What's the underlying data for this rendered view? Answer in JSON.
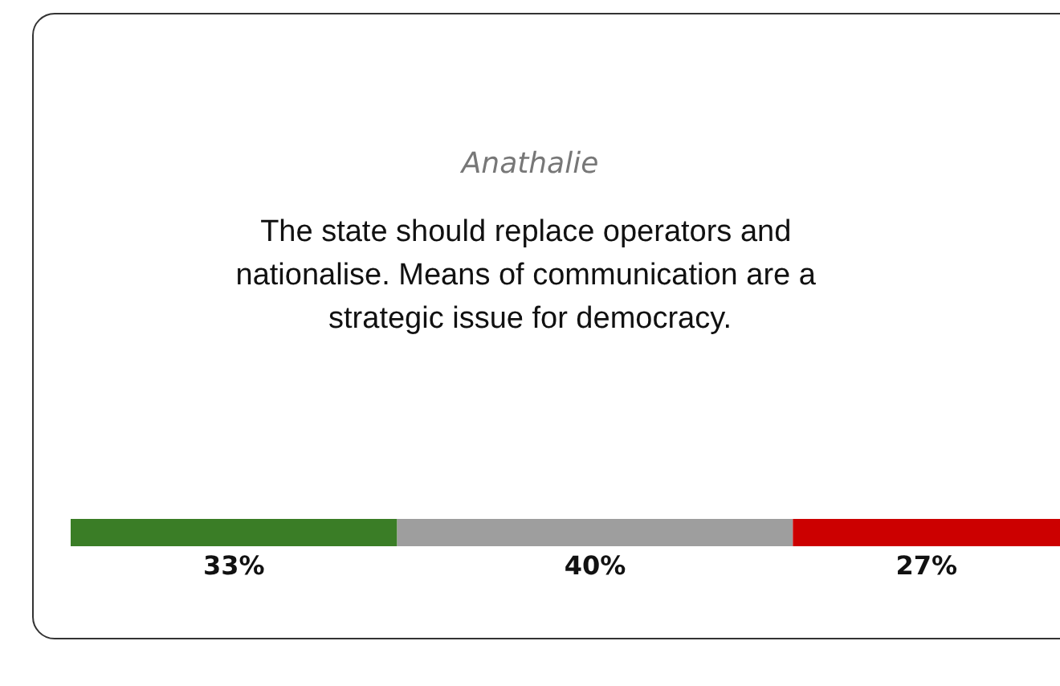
{
  "chart_data": {
    "type": "bar",
    "orientation": "horizontal",
    "stacked": true,
    "title": "Anathalie",
    "subtitle": "The state should replace operators and nationalise. Means of communication are a strategic issue for democracy.",
    "categories": [
      null
    ],
    "tick_labels": false,
    "series": [
      {
        "color": "#3a7d26",
        "values": [
          33
        ],
        "value_labels": [
          "33%"
        ]
      },
      {
        "color": "#9e9e9e",
        "values": [
          40
        ],
        "value_labels": [
          "40%"
        ]
      },
      {
        "color": "#cc0000",
        "values": [
          27
        ],
        "value_labels": [
          "27%"
        ]
      }
    ]
  }
}
